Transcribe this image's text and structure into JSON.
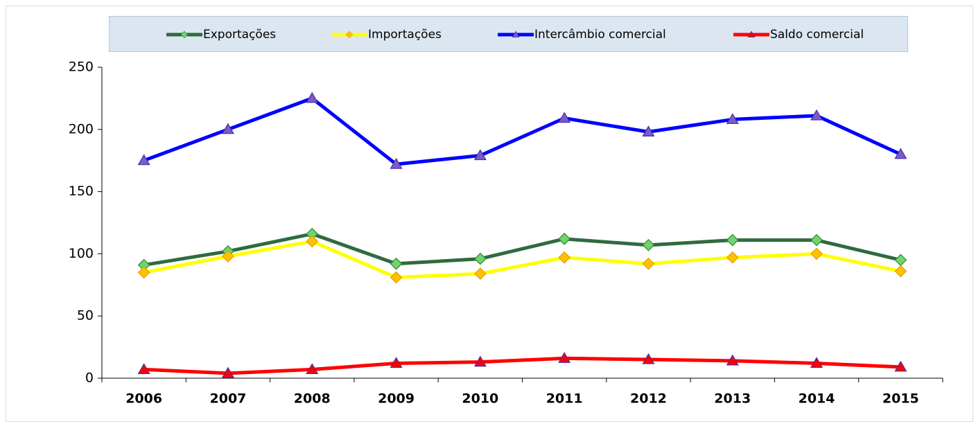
{
  "chart_data": {
    "type": "line",
    "categories": [
      "2006",
      "2007",
      "2008",
      "2009",
      "2010",
      "2011",
      "2012",
      "2013",
      "2014",
      "2015"
    ],
    "series": [
      {
        "name": "Exportações",
        "color": "#2e6b3e",
        "marker": "diamond",
        "marker_color": "#6fd36f",
        "values": [
          91,
          102,
          116,
          92,
          96,
          112,
          107,
          111,
          111,
          95
        ]
      },
      {
        "name": "Importações",
        "color": "#ffff00",
        "marker": "diamond",
        "marker_color": "#ffc000",
        "values": [
          85,
          98,
          110,
          81,
          84,
          97,
          92,
          97,
          100,
          86
        ]
      },
      {
        "name": "Intercâmbio comercial",
        "color": "#0000ff",
        "marker": "triangle",
        "marker_color": "#7b5cc4",
        "values": [
          175,
          200,
          225,
          172,
          179,
          209,
          198,
          208,
          211,
          180
        ]
      },
      {
        "name": "Saldo comercial",
        "color": "#ff0000",
        "marker": "triangle",
        "marker_color": "#ff0000",
        "values": [
          7,
          4,
          7,
          12,
          13,
          16,
          15,
          14,
          12,
          9
        ]
      }
    ],
    "ylim": [
      0,
      250
    ],
    "yticks": [
      0,
      50,
      100,
      150,
      200,
      250
    ],
    "grid": false,
    "legend": "top"
  }
}
